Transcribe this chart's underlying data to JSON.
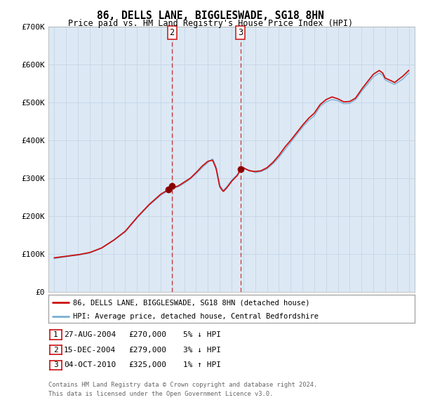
{
  "title": "86, DELLS LANE, BIGGLESWADE, SG18 8HN",
  "subtitle": "Price paid vs. HM Land Registry's House Price Index (HPI)",
  "background_color": "#ffffff",
  "plot_bg_color": "#dce9f5",
  "grid_color": "#c8d8e8",
  "hpi_line_color": "#7bafd4",
  "price_line_color": "#cc1111",
  "marker_color": "#8b0000",
  "vline_color": "#cc1111",
  "ylim": [
    0,
    700000
  ],
  "yticks": [
    0,
    100000,
    200000,
    300000,
    400000,
    500000,
    600000,
    700000
  ],
  "ytick_labels": [
    "£0",
    "£100K",
    "£200K",
    "£300K",
    "£400K",
    "£500K",
    "£600K",
    "£700K"
  ],
  "xlim_start": 1994.5,
  "xlim_end": 2025.5,
  "transaction_markers": [
    {
      "year": 2004.65,
      "price": 270000,
      "label": "1"
    },
    {
      "year": 2004.96,
      "price": 279000,
      "label": "2"
    },
    {
      "year": 2010.75,
      "price": 325000,
      "label": "3"
    }
  ],
  "vlines": [
    {
      "x": 2004.96,
      "label": "2"
    },
    {
      "x": 2010.75,
      "label": "3"
    }
  ],
  "numbered_boxes": [
    {
      "x": 2004.96,
      "label": "2"
    },
    {
      "x": 2010.75,
      "label": "3"
    }
  ],
  "legend_entries": [
    "86, DELLS LANE, BIGGLESWADE, SG18 8HN (detached house)",
    "HPI: Average price, detached house, Central Bedfordshire"
  ],
  "table_data": [
    {
      "num": "1",
      "date": "27-AUG-2004",
      "price": "£270,000",
      "hpi": "5% ↓ HPI"
    },
    {
      "num": "2",
      "date": "15-DEC-2004",
      "price": "£279,000",
      "hpi": "3% ↓ HPI"
    },
    {
      "num": "3",
      "date": "04-OCT-2010",
      "price": "£325,000",
      "hpi": "1% ↑ HPI"
    }
  ],
  "footnote_line1": "Contains HM Land Registry data © Crown copyright and database right 2024.",
  "footnote_line2": "This data is licensed under the Open Government Licence v3.0."
}
